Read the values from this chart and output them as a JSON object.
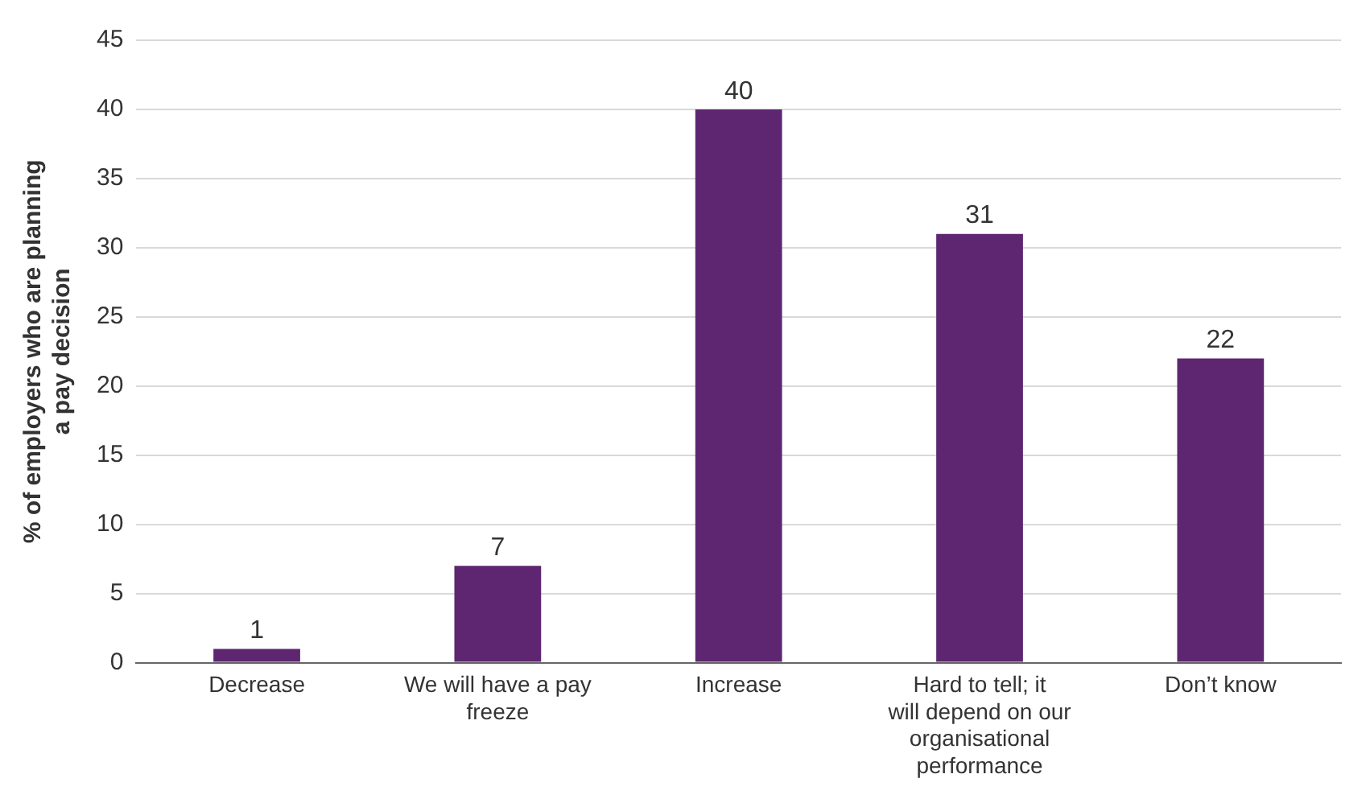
{
  "chart_data": {
    "type": "bar",
    "ylabel": "% of employers who are planning a pay decision",
    "categories": [
      "Decrease",
      "We will have a pay freeze",
      "Increase",
      "Hard to tell; it will depend on our organisational performance",
      "Don’t know"
    ],
    "values": [
      1,
      7,
      40,
      31,
      22
    ],
    "color": "#5e2670",
    "ylim": [
      0,
      45
    ],
    "yticks": [
      0,
      5,
      10,
      15,
      20,
      25,
      30,
      35,
      40,
      45
    ],
    "grid": "y",
    "data_labels": true
  }
}
